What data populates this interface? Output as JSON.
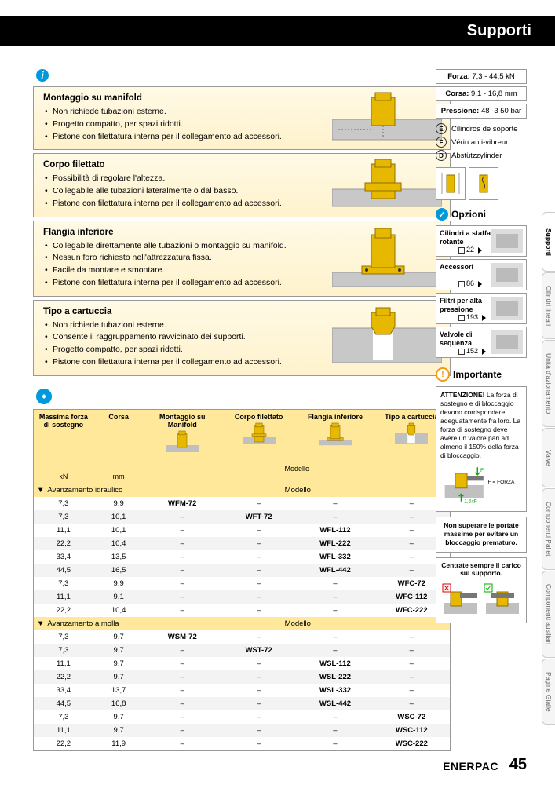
{
  "header": {
    "title": "Supporti"
  },
  "boxes": [
    {
      "title": "Montaggio su manifold",
      "items": [
        "Non richiede tubazioni esterne.",
        "Progetto compatto, per spazi ridotti.",
        "Pistone con filettatura interna per il collegamento ad accessori."
      ]
    },
    {
      "title": "Corpo filettato",
      "items": [
        "Possibilità di regolare l'altezza.",
        "Collegabile alle tubazioni lateralmente o dal basso.",
        "Pistone con filettatura interna per il collegamento ad accessori."
      ]
    },
    {
      "title": "Flangia inferiore",
      "items": [
        "Collegabile direttamente alle tubazioni o montaggio su manifold.",
        "Nessun foro richiesto nell'attrezzatura fissa.",
        "Facile da montare e smontare.",
        "Pistone con filettatura interna per il collegamento ad accessori."
      ]
    },
    {
      "title": "Tipo a cartuccia",
      "items": [
        "Non richiede tubazioni esterne.",
        "Consente il raggruppamento ravvicinato dei supporti.",
        "Progetto compatto, per spazi ridotti.",
        "Pistone con filettatura interna per il collegamento ad accessori."
      ]
    }
  ],
  "table": {
    "headers": {
      "col1": "Massima forza di sostegno",
      "col2": "Corsa",
      "col3": "Montaggio su Manifold",
      "col4": "Corpo filettato",
      "col5": "Flangia inferiore",
      "col6": "Tipo a cartuccia",
      "u1": "kN",
      "u2": "mm",
      "modello": "Modello"
    },
    "section1": "Avanzamento idraulico",
    "rows1": [
      [
        "7,3",
        "9,9",
        "WFM-72",
        "–",
        "–",
        "–"
      ],
      [
        "7,3",
        "10,1",
        "–",
        "WFT-72",
        "–",
        "–"
      ],
      [
        "11,1",
        "10,1",
        "–",
        "–",
        "WFL-112",
        "–"
      ],
      [
        "22,2",
        "10,4",
        "–",
        "–",
        "WFL-222",
        "–"
      ],
      [
        "33,4",
        "13,5",
        "–",
        "–",
        "WFL-332",
        "–"
      ],
      [
        "44,5",
        "16,5",
        "–",
        "–",
        "WFL-442",
        "–"
      ],
      [
        "7,3",
        "9,9",
        "–",
        "–",
        "–",
        "WFC-72"
      ],
      [
        "11,1",
        "9,1",
        "–",
        "–",
        "–",
        "WFC-112"
      ],
      [
        "22,2",
        "10,4",
        "–",
        "–",
        "–",
        "WFC-222"
      ]
    ],
    "section2": "Avanzamento a molla",
    "rows2": [
      [
        "7,3",
        "9,7",
        "WSM-72",
        "–",
        "–",
        "–"
      ],
      [
        "7,3",
        "9,7",
        "–",
        "WST-72",
        "–",
        "–"
      ],
      [
        "11,1",
        "9,7",
        "–",
        "–",
        "WSL-112",
        "–"
      ],
      [
        "22,2",
        "9,7",
        "–",
        "–",
        "WSL-222",
        "–"
      ],
      [
        "33,4",
        "13,7",
        "–",
        "–",
        "WSL-332",
        "–"
      ],
      [
        "44,5",
        "16,8",
        "–",
        "–",
        "WSL-442",
        "–"
      ],
      [
        "7,3",
        "9,7",
        "–",
        "–",
        "–",
        "WSC-72"
      ],
      [
        "11,1",
        "9,7",
        "–",
        "–",
        "–",
        "WSC-112"
      ],
      [
        "22,2",
        "11,9",
        "–",
        "–",
        "–",
        "WSC-222"
      ]
    ]
  },
  "specs": [
    {
      "label": "Forza:",
      "val": "7,3 - 44,5 kN"
    },
    {
      "label": "Corsa:",
      "val": "9,1 - 16,8 mm"
    },
    {
      "label": "Pressione:",
      "val": "48 -3 50 bar"
    }
  ],
  "langs": [
    {
      "code": "E",
      "text": "Cilindros de soporte"
    },
    {
      "code": "F",
      "text": "Vérin anti-vibreur"
    },
    {
      "code": "D",
      "text": "Abstützzylinder"
    }
  ],
  "opzioni_title": "Opzioni",
  "opzioni": [
    {
      "text": "Cilindri a staffa rotante",
      "ref": "22"
    },
    {
      "text": "Accessori",
      "ref": "86"
    },
    {
      "text": "Filtri per alta pressione",
      "ref": "193"
    },
    {
      "text": "Valvole di sequenza",
      "ref": "152"
    }
  ],
  "importante": {
    "title": "Importante",
    "warn_title": "ATTENZIONE!",
    "warn_text": "La forza di sostegno e di bloccaggio devono corrispondere adeguatamente fra loro. La forza di sostegno deve avere un valore pari ad almeno il 150% della forza di bloccaggio.",
    "f_label": "F",
    "f_eq": "F = FORZA",
    "f_support": "1,5xF",
    "box2": "Non superare le portate massime per evitare un bloccaggio prematuro.",
    "box3": "Centrate sempre il carico sul supporto."
  },
  "tabs": [
    "Supporti",
    "Cilindri lineari",
    "Unità d'azionamento",
    "Valve",
    "Componenti Pallet",
    "Componenti ausiliari",
    "Pagine Gialle"
  ],
  "brand": "ENERPAC",
  "page": "45",
  "colors": {
    "gold": "#e6b800",
    "gold_light": "#ffe89a",
    "blue": "#0099dd",
    "orange": "#f39c12"
  }
}
